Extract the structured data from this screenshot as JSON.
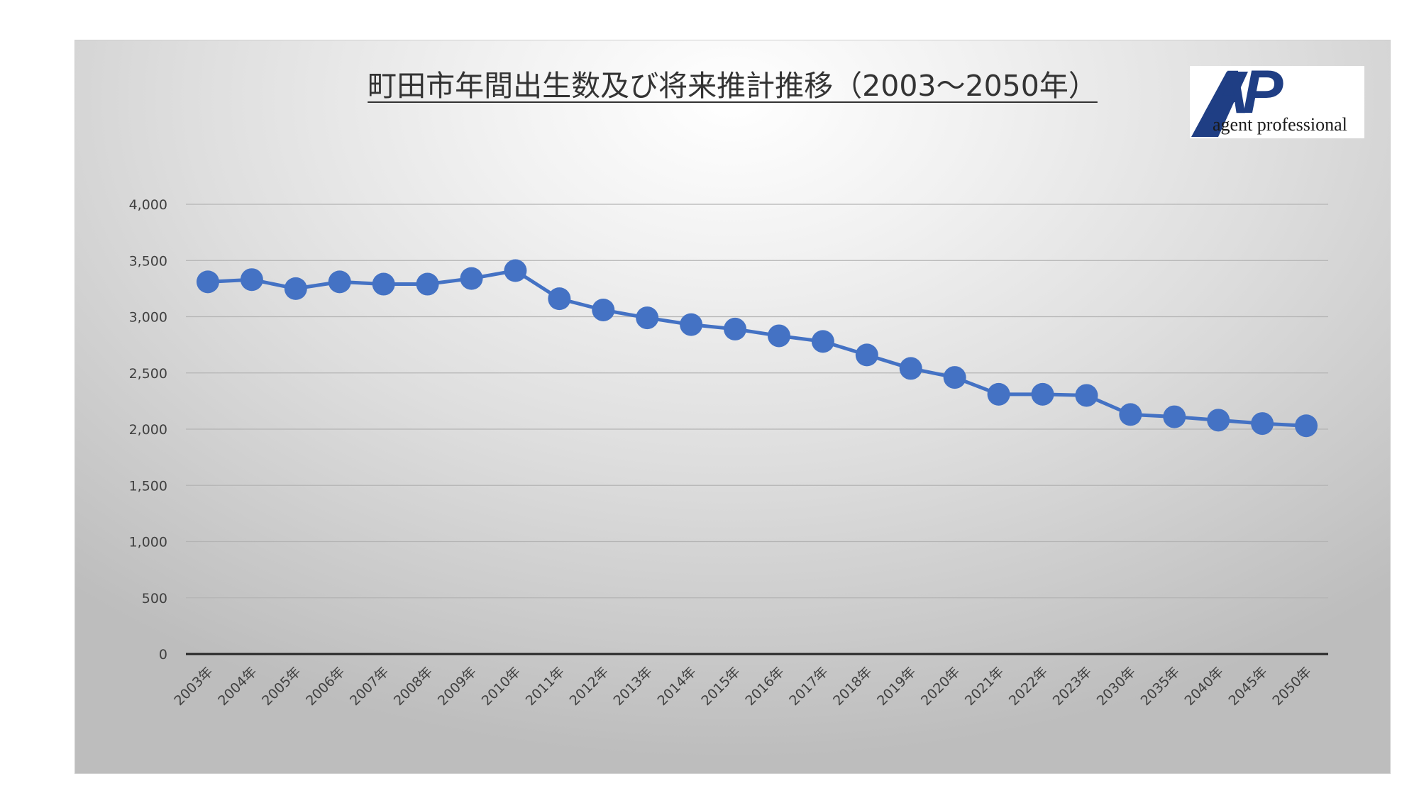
{
  "logo": {
    "mark": "AP",
    "wordmark": "agent professional",
    "color": "#1f3e84"
  },
  "chart_data": {
    "type": "line",
    "title": "町田市年間出生数及び将来推計推移（2003～2050年）",
    "xlabel": "",
    "ylabel": "",
    "ylim": [
      0,
      4000
    ],
    "yticks": [
      "0",
      "500",
      "1,000",
      "1,500",
      "2,000",
      "2,500",
      "3,000",
      "3,500",
      "4,000"
    ],
    "ytick_values": [
      0,
      500,
      1000,
      1500,
      2000,
      2500,
      3000,
      3500,
      4000
    ],
    "grid": true,
    "legend": "none",
    "series_color": "#4472c4",
    "categories": [
      "2003年",
      "2004年",
      "2005年",
      "2006年",
      "2007年",
      "2008年",
      "2009年",
      "2010年",
      "2011年",
      "2012年",
      "2013年",
      "2014年",
      "2015年",
      "2016年",
      "2017年",
      "2018年",
      "2019年",
      "2020年",
      "2021年",
      "2022年",
      "2023年",
      "2030年",
      "2035年",
      "2040年",
      "2045年",
      "2050年"
    ],
    "series": [
      {
        "values": [
          3310,
          3330,
          3250,
          3310,
          3290,
          3290,
          3340,
          3410,
          3160,
          3060,
          2990,
          2930,
          2890,
          2830,
          2780,
          2660,
          2540,
          2460,
          2310,
          2310,
          2300,
          2130,
          2110,
          2080,
          2050,
          2030
        ]
      }
    ]
  }
}
